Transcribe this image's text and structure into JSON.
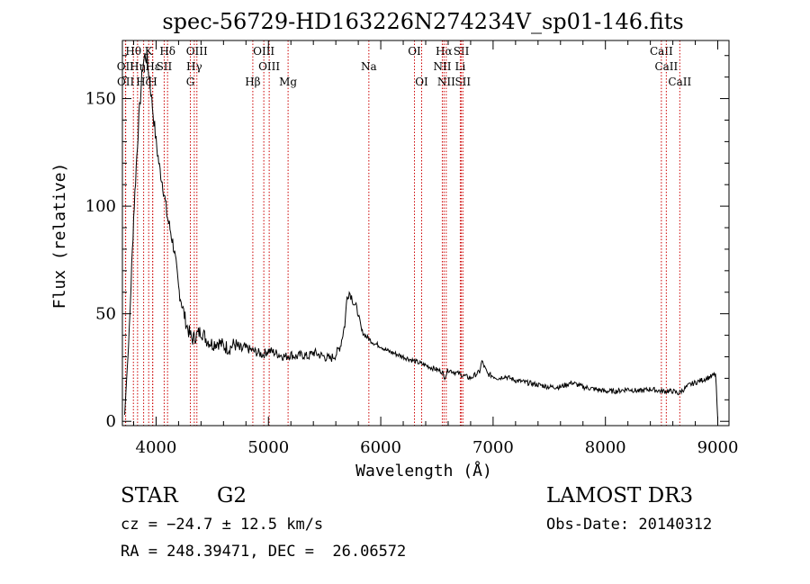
{
  "chart_data": {
    "type": "line",
    "title": "spec-56729-HD163226N274234V_sp01-146.fits",
    "xlabel": "Wavelength (Å)",
    "ylabel": "Flux (relative)",
    "xlim": [
      3700,
      9100
    ],
    "ylim": [
      -2,
      177
    ],
    "xticks": [
      4000,
      5000,
      6000,
      7000,
      8000,
      9000
    ],
    "yticks": [
      0,
      50,
      100,
      150
    ],
    "grid": false,
    "line_color": "#000000",
    "marker_color": "#cc0000",
    "series": [
      {
        "x": [
          3720,
          3760,
          3800,
          3840,
          3860,
          3880,
          3900,
          3920,
          3940,
          3960,
          3980,
          4000,
          4030,
          4060,
          4100,
          4130,
          4160,
          4200,
          4240,
          4270,
          4290,
          4320,
          4360,
          4400,
          4450,
          4500,
          4550,
          4600,
          4650,
          4700,
          4750,
          4800,
          4850,
          4900,
          4950,
          5000,
          5050,
          5100,
          5150,
          5200,
          5250,
          5300,
          5350,
          5400,
          5450,
          5500,
          5550,
          5600,
          5640,
          5680,
          5700,
          5720,
          5740,
          5760,
          5780,
          5800,
          5830,
          5860,
          5900,
          5950,
          6000,
          6050,
          6100,
          6150,
          6200,
          6250,
          6300,
          6350,
          6400,
          6450,
          6500,
          6550,
          6563,
          6600,
          6650,
          6700,
          6750,
          6800,
          6850,
          6880,
          6900,
          6950,
          7000,
          7050,
          7100,
          7150,
          7200,
          7300,
          7400,
          7500,
          7600,
          7650,
          7700,
          7750,
          7800,
          7900,
          8000,
          8100,
          8200,
          8300,
          8400,
          8500,
          8600,
          8650,
          8700,
          8750,
          8800,
          8850,
          8900,
          8950,
          8980,
          9000
        ],
        "y": [
          3,
          40,
          95,
          135,
          150,
          165,
          170,
          168,
          160,
          150,
          140,
          130,
          118,
          110,
          95,
          88,
          80,
          62,
          52,
          45,
          42,
          38,
          40,
          42,
          38,
          36,
          37,
          35,
          34,
          36,
          33,
          34,
          33,
          32,
          31,
          33,
          32,
          31,
          30,
          31,
          30,
          31,
          30,
          32,
          31,
          30,
          29,
          31,
          35,
          45,
          58,
          60,
          58,
          55,
          53,
          50,
          42,
          40,
          38,
          36,
          35,
          33,
          32,
          31,
          30,
          29,
          28,
          27,
          26,
          25,
          24,
          23,
          20,
          24,
          23,
          22,
          21,
          20,
          22,
          23,
          28,
          22,
          21,
          20,
          21,
          20,
          19,
          18,
          17,
          16,
          16,
          17,
          18,
          17,
          16,
          15,
          14,
          14,
          15,
          14,
          15,
          14,
          14,
          13,
          15,
          17,
          18,
          19,
          20,
          21,
          22,
          1
        ]
      }
    ],
    "line_markers": [
      {
        "label": "Hθ",
        "x": 3798,
        "row": 1
      },
      {
        "label": "OII",
        "x": 3727,
        "row": 2
      },
      {
        "label": "OII",
        "x": 3729,
        "row": 3
      },
      {
        "label": "Hη",
        "x": 3835,
        "row": 2
      },
      {
        "label": "Hζ",
        "x": 3889,
        "row": 3
      },
      {
        "label": "K",
        "x": 3934,
        "row": 1
      },
      {
        "label": "H",
        "x": 3969,
        "row": 3
      },
      {
        "label": "Hε",
        "x": 3970,
        "row": 2
      },
      {
        "label": "SII",
        "x": 4072,
        "row": 2
      },
      {
        "label": "Hδ",
        "x": 4102,
        "row": 1
      },
      {
        "label": "OIII",
        "x": 4363,
        "row": 1
      },
      {
        "label": "Hγ",
        "x": 4340,
        "row": 2
      },
      {
        "label": "G",
        "x": 4305,
        "row": 3
      },
      {
        "label": "Hβ",
        "x": 4861,
        "row": 3
      },
      {
        "label": "OIII",
        "x": 4959,
        "row": 1
      },
      {
        "label": "OIII",
        "x": 5007,
        "row": 2
      },
      {
        "label": "Mg",
        "x": 5175,
        "row": 3
      },
      {
        "label": "Na",
        "x": 5894,
        "row": 2
      },
      {
        "label": "OI",
        "x": 6300,
        "row": 1
      },
      {
        "label": "OI",
        "x": 6364,
        "row": 3
      },
      {
        "label": "Hα",
        "x": 6563,
        "row": 1
      },
      {
        "label": "NII",
        "x": 6548,
        "row": 2
      },
      {
        "label": "NII",
        "x": 6583,
        "row": 3
      },
      {
        "label": "SII",
        "x": 6717,
        "row": 1
      },
      {
        "label": "SII",
        "x": 6731,
        "row": 3
      },
      {
        "label": "Li",
        "x": 6708,
        "row": 2
      },
      {
        "label": "CaII",
        "x": 8498,
        "row": 1
      },
      {
        "label": "CaII",
        "x": 8542,
        "row": 2
      },
      {
        "label": "CaII",
        "x": 8662,
        "row": 3
      }
    ]
  },
  "info": {
    "class_label": "STAR",
    "subclass_label": "G2",
    "survey": "LAMOST DR3",
    "cz": "cz = −24.7 ± 12.5 km/s",
    "obs_date": "Obs-Date: 20140312",
    "coords": "RA = 248.39471, DEC =  26.06572"
  }
}
